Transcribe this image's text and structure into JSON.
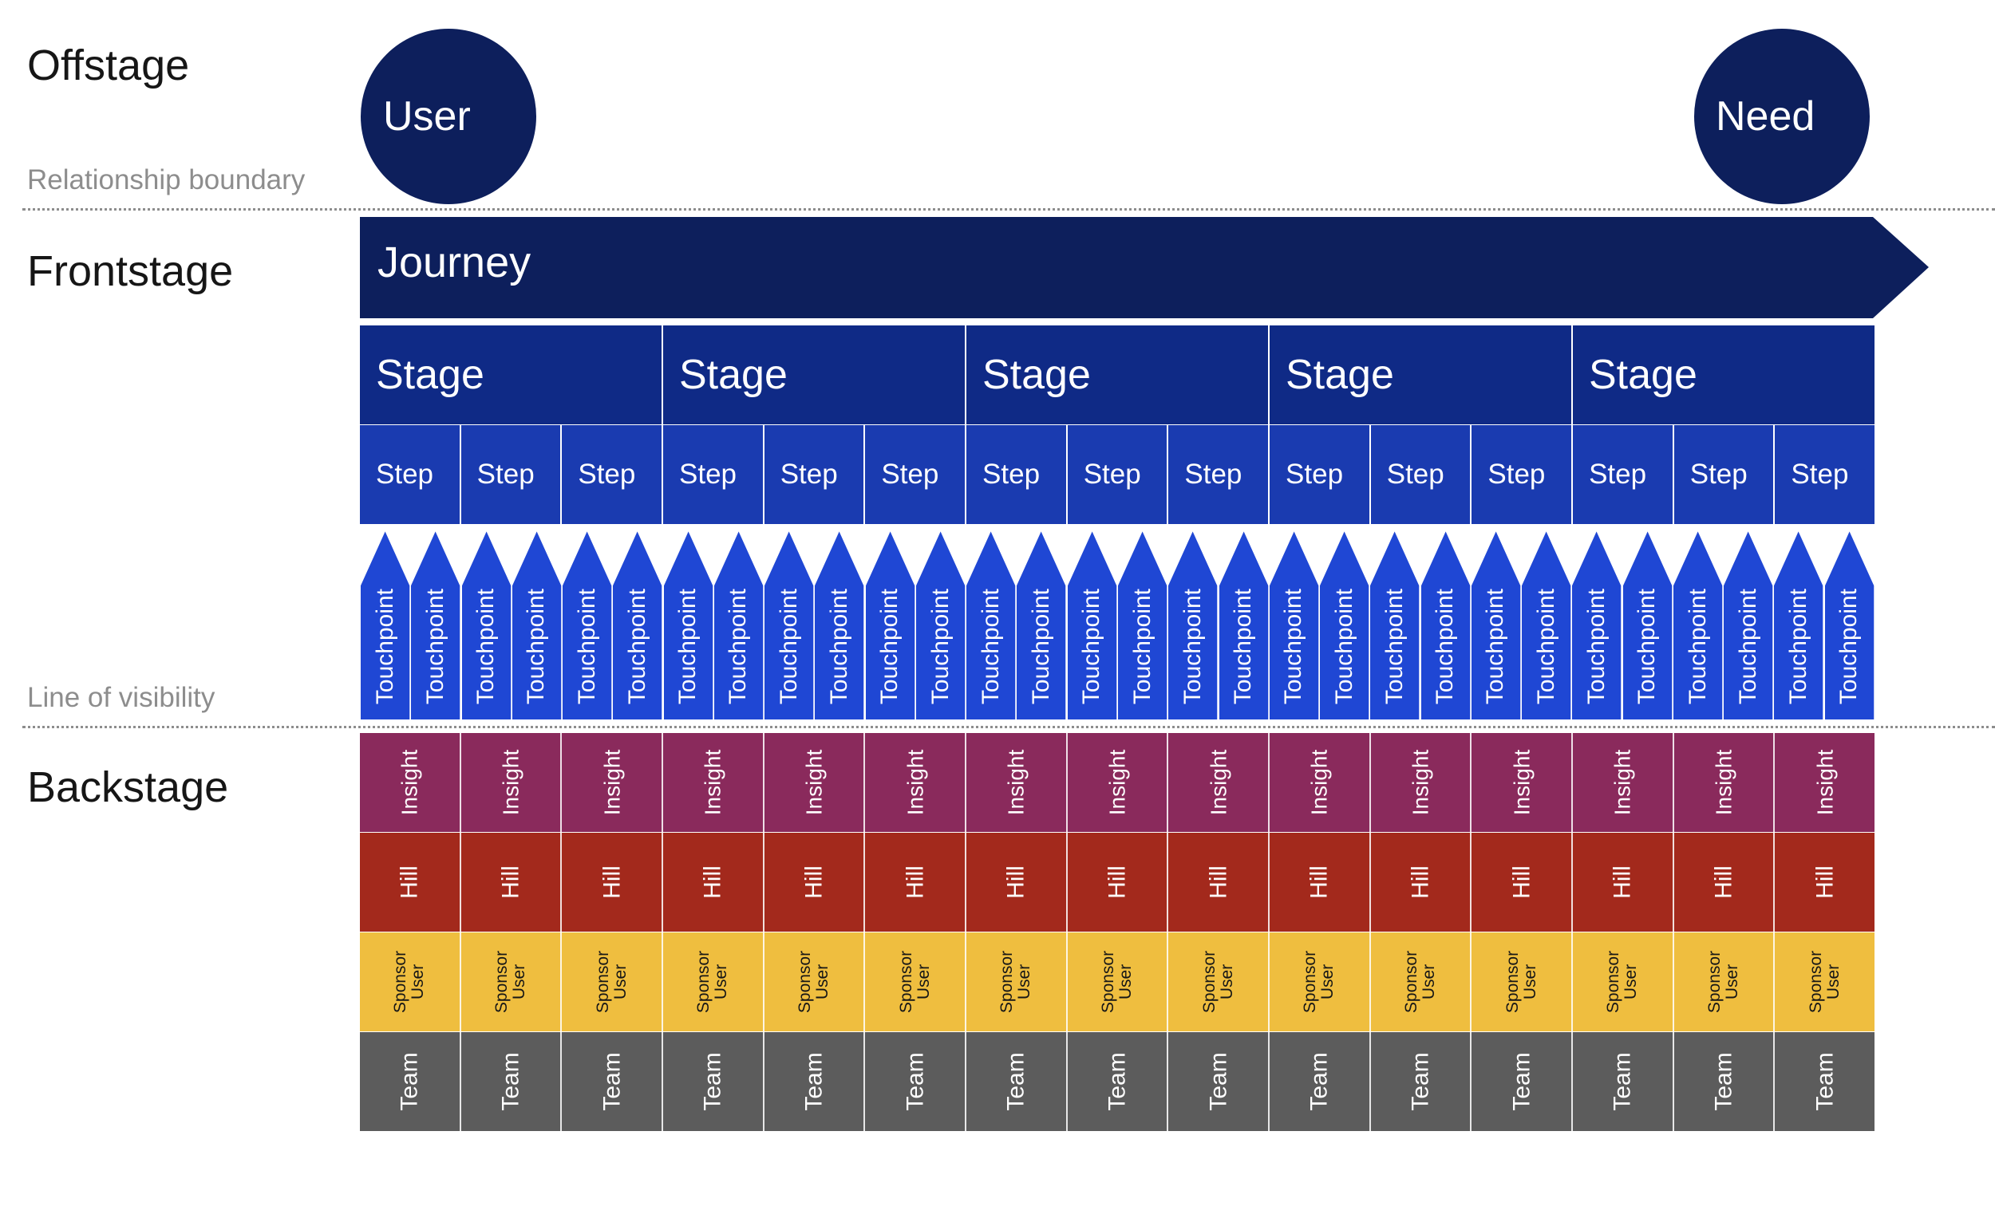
{
  "sections": {
    "offstage": "Offstage",
    "frontstage": "Frontstage",
    "backstage": "Backstage"
  },
  "boundaries": {
    "relationship": "Relationship boundary",
    "visibility": "Line of visibility"
  },
  "circles": {
    "user": "User",
    "need": "Need"
  },
  "journey": {
    "label": "Journey"
  },
  "stages": [
    "Stage",
    "Stage",
    "Stage",
    "Stage",
    "Stage"
  ],
  "steps": [
    "Step",
    "Step",
    "Step",
    "Step",
    "Step",
    "Step",
    "Step",
    "Step",
    "Step",
    "Step",
    "Step",
    "Step",
    "Step",
    "Step",
    "Step"
  ],
  "touchpoints": [
    "Touchpoint",
    "Touchpoint",
    "Touchpoint",
    "Touchpoint",
    "Touchpoint",
    "Touchpoint",
    "Touchpoint",
    "Touchpoint",
    "Touchpoint",
    "Touchpoint",
    "Touchpoint",
    "Touchpoint",
    "Touchpoint",
    "Touchpoint",
    "Touchpoint",
    "Touchpoint",
    "Touchpoint",
    "Touchpoint",
    "Touchpoint",
    "Touchpoint",
    "Touchpoint",
    "Touchpoint",
    "Touchpoint",
    "Touchpoint",
    "Touchpoint",
    "Touchpoint",
    "Touchpoint",
    "Touchpoint",
    "Touchpoint",
    "Touchpoint"
  ],
  "backstage_rows": {
    "insight": "Insight",
    "hill": "Hill",
    "sponsor_user": [
      "Sponsor",
      "User"
    ],
    "team": "Team"
  },
  "colors": {
    "dark_navy": "#0d1f5c",
    "stage": "#0f2a86",
    "step": "#1a3bb0",
    "touchpoint": "#1f47d4",
    "insight": "#8a2a5c",
    "hill": "#a3291c",
    "sponsor_user": "#efbe3f",
    "team": "#5c5c5c"
  }
}
